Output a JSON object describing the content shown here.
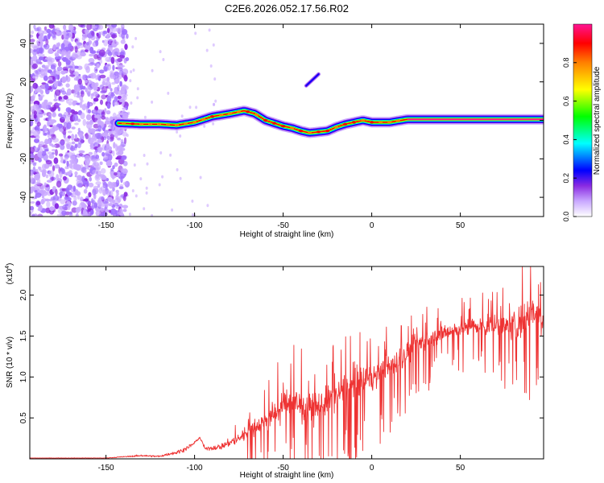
{
  "figure_title": "C2E6.2026.052.17.56.R02",
  "chart_data": [
    {
      "type": "heatmap",
      "name": "spectrogram",
      "xlabel": "Height of straight line (km)",
      "ylabel": "Frequency (Hz)",
      "xlim": [
        -193,
        97
      ],
      "ylim": [
        -50,
        50
      ],
      "xticks": [
        -150,
        -100,
        -50,
        0,
        50
      ],
      "yticks": [
        -40,
        -20,
        0,
        20,
        40
      ],
      "colorbar_label": "Normalized spectral amplitude",
      "colorbar_range": [
        0.0,
        1.0
      ],
      "colorbar_ticks": [
        0.0,
        0.2,
        0.4,
        0.6,
        0.8
      ],
      "colormap": [
        "#ffffff",
        "#c9a8ff",
        "#8a2be2",
        "#0000ff",
        "#00ffff",
        "#00ff00",
        "#ffff00",
        "#ff8000",
        "#ff0000",
        "#ff1493"
      ],
      "noise_region_end_km": -138,
      "ridge": {
        "x": [
          -143,
          -130,
          -120,
          -110,
          -100,
          -90,
          -80,
          -72,
          -66,
          -60,
          -50,
          -45,
          -40,
          -35,
          -30,
          -25,
          -20,
          -15,
          -10,
          -5,
          0,
          10,
          20,
          40,
          60,
          80,
          97
        ],
        "freq": [
          -1.5,
          -2,
          -2,
          -2.5,
          -1,
          2,
          3.5,
          5,
          3.5,
          0,
          -3,
          -4,
          -5.5,
          -6.5,
          -6,
          -5.5,
          -3.5,
          -2,
          -1,
          0,
          -1,
          -1,
          0.5,
          0.5,
          0.5,
          0.5,
          0.5
        ]
      },
      "secondary_blob": {
        "x": [
          -37,
          -30
        ],
        "freq": [
          18,
          24
        ]
      }
    },
    {
      "type": "line",
      "name": "snr",
      "xlabel": "Height of straight line (km)",
      "ylabel": "SNR (10 * v/v)",
      "y_multiplier": "(x10",
      "y_multiplier_exp": "4",
      "y_multiplier_close": ")",
      "xlim": [
        -193,
        97
      ],
      "ylim": [
        0,
        2.35
      ],
      "xticks": [
        -150,
        -100,
        -50,
        0,
        50
      ],
      "yticks": [
        0.5,
        1.0,
        1.5,
        2.0
      ],
      "color": "#ee3333",
      "envelope": {
        "x": [
          -193,
          -150,
          -130,
          -120,
          -110,
          -104,
          -100,
          -97,
          -94,
          -85,
          -75,
          -65,
          -55,
          -45,
          -35,
          -25,
          -15,
          -5,
          0,
          10,
          20,
          30,
          40,
          50,
          60,
          70,
          80,
          85,
          90,
          97
        ],
        "mean": [
          0.01,
          0.01,
          0.04,
          0.03,
          0.08,
          0.13,
          0.2,
          0.26,
          0.12,
          0.15,
          0.25,
          0.4,
          0.55,
          0.7,
          0.6,
          0.7,
          0.85,
          0.95,
          1.0,
          1.12,
          1.3,
          1.45,
          1.55,
          1.6,
          1.62,
          1.62,
          1.63,
          1.7,
          1.85,
          1.7
        ],
        "noise": [
          0.004,
          0.006,
          0.02,
          0.02,
          0.04,
          0.05,
          0.03,
          0.02,
          0.04,
          0.07,
          0.12,
          0.22,
          0.3,
          0.35,
          0.35,
          0.35,
          0.35,
          0.32,
          0.3,
          0.28,
          0.25,
          0.22,
          0.2,
          0.2,
          0.22,
          0.25,
          0.35,
          0.45,
          0.4,
          0.35
        ]
      }
    }
  ]
}
